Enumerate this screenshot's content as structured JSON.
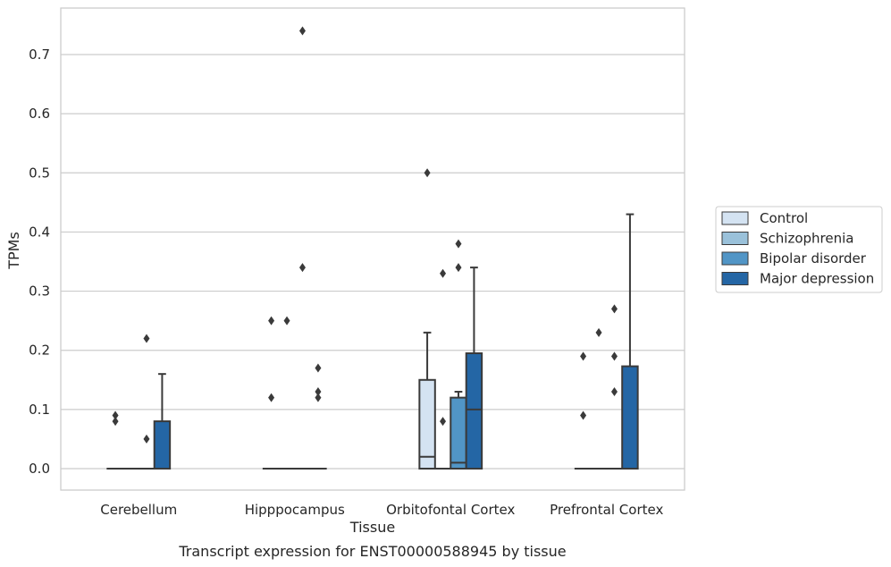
{
  "chart_data": {
    "type": "box",
    "caption": "Transcript expression for ENST00000588945 by tissue",
    "xlabel": "Tissue",
    "ylabel": "TPMs",
    "ylim": [
      -0.035,
      0.77
    ],
    "yticks": [
      0.0,
      0.1,
      0.2,
      0.3,
      0.4,
      0.5,
      0.6,
      0.7
    ],
    "ytick_labels": [
      "0.0",
      "0.1",
      "0.2",
      "0.3",
      "0.4",
      "0.5",
      "0.6",
      "0.7"
    ],
    "grid": "horizontal",
    "legend_position": "right-outside",
    "categories": [
      "Cerebellum",
      "Hipppocampus",
      "Orbitofontal Cortex",
      "Prefrontal Cortex"
    ],
    "series": [
      {
        "name": "Control",
        "color": "#d4e3f2",
        "boxes": [
          {
            "q1": 0,
            "median": 0,
            "q3": 0,
            "whislo": 0,
            "whishi": 0,
            "fliers": [
              0.09,
              0.08
            ]
          },
          {
            "q1": 0,
            "median": 0,
            "q3": 0,
            "whislo": 0,
            "whishi": 0,
            "fliers": [
              0.25,
              0.12
            ]
          },
          {
            "q1": 0,
            "median": 0.02,
            "q3": 0.15,
            "whislo": 0,
            "whishi": 0.23,
            "fliers": [
              0.5
            ]
          },
          {
            "q1": 0,
            "median": 0,
            "q3": 0,
            "whislo": 0,
            "whishi": 0,
            "fliers": [
              0.19,
              0.09
            ]
          }
        ]
      },
      {
        "name": "Schizophrenia",
        "color": "#9ac1da",
        "boxes": [
          {
            "q1": 0,
            "median": 0,
            "q3": 0,
            "whislo": 0,
            "whishi": 0,
            "fliers": []
          },
          {
            "q1": 0,
            "median": 0,
            "q3": 0,
            "whislo": 0,
            "whishi": 0,
            "fliers": [
              0.25
            ]
          },
          {
            "q1": 0,
            "median": 0,
            "q3": 0,
            "whislo": 0,
            "whishi": 0,
            "fliers": [
              0.33,
              0.08
            ]
          },
          {
            "q1": 0,
            "median": 0,
            "q3": 0,
            "whislo": 0,
            "whishi": 0,
            "fliers": [
              0.23
            ]
          }
        ]
      },
      {
        "name": "Bipolar disorder",
        "color": "#5195c6",
        "boxes": [
          {
            "q1": 0,
            "median": 0,
            "q3": 0,
            "whislo": 0,
            "whishi": 0,
            "fliers": [
              0.05,
              0.22
            ]
          },
          {
            "q1": 0,
            "median": 0,
            "q3": 0,
            "whislo": 0,
            "whishi": 0,
            "fliers": [
              0.74,
              0.34
            ]
          },
          {
            "q1": 0,
            "median": 0.01,
            "q3": 0.12,
            "whislo": 0,
            "whishi": 0.13,
            "fliers": [
              0.38,
              0.34
            ]
          },
          {
            "q1": 0,
            "median": 0,
            "q3": 0,
            "whislo": 0,
            "whishi": 0,
            "fliers": [
              0.27,
              0.19,
              0.13
            ]
          }
        ]
      },
      {
        "name": "Major depression",
        "color": "#2466a5",
        "boxes": [
          {
            "q1": 0,
            "median": 0,
            "q3": 0.08,
            "whislo": 0,
            "whishi": 0.16,
            "fliers": []
          },
          {
            "q1": 0,
            "median": 0,
            "q3": 0,
            "whislo": 0,
            "whishi": 0,
            "fliers": [
              0.17,
              0.13,
              0.12
            ]
          },
          {
            "q1": 0,
            "median": 0.1,
            "q3": 0.195,
            "whislo": 0,
            "whishi": 0.34,
            "fliers": []
          },
          {
            "q1": 0,
            "median": 0,
            "q3": 0.173,
            "whislo": 0,
            "whishi": 0.43,
            "fliers": []
          }
        ]
      }
    ]
  }
}
